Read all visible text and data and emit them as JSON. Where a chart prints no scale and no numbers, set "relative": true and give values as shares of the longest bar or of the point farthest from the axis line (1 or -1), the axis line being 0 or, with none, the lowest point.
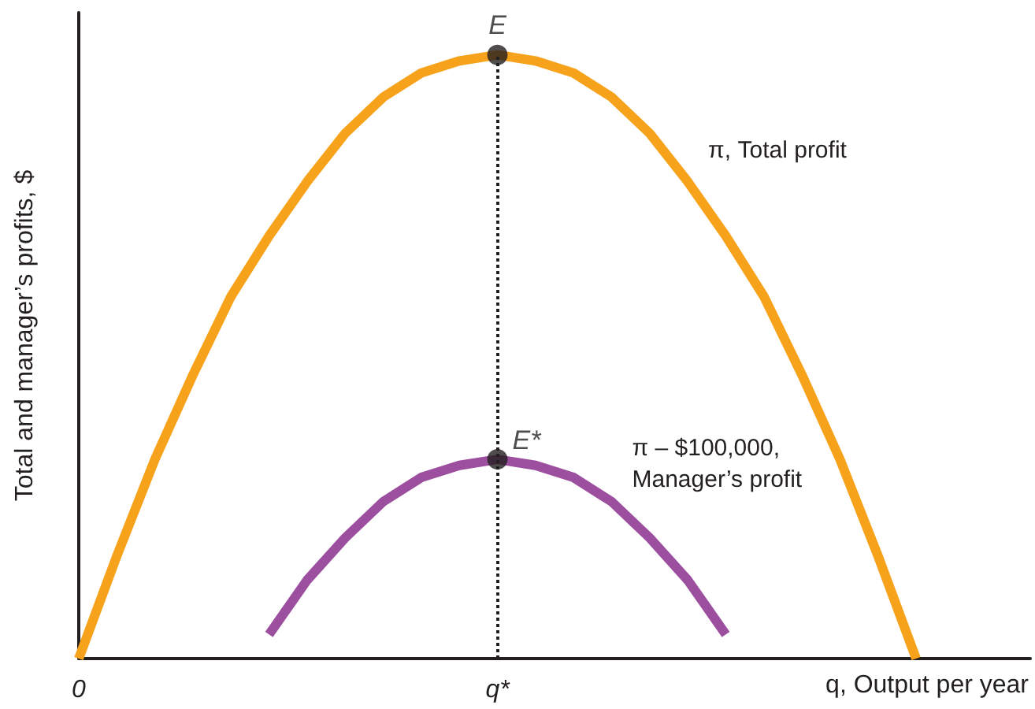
{
  "chart_data": {
    "type": "line",
    "relative": true,
    "xlabel": "q, Output per year",
    "ylabel": "Total and manager’s profits, $",
    "categories": [
      "0",
      null,
      null,
      null,
      null,
      null,
      null,
      null,
      null,
      null,
      null,
      "q*",
      null,
      null,
      null,
      null,
      null,
      null,
      null,
      null,
      null,
      null,
      null,
      null,
      null,
      null
    ],
    "series": [
      {
        "name": "π, Total profit",
        "color": "#f7a21b",
        "values": [
          0,
          0.17,
          0.33,
          0.47,
          0.6,
          0.7,
          0.79,
          0.87,
          0.93,
          0.97,
          0.99,
          1,
          0.99,
          0.97,
          0.93,
          0.87,
          0.79,
          0.7,
          0.6,
          0.47,
          0.33,
          0.17,
          0,
          null,
          null,
          null
        ]
      },
      {
        "name": "π – $100,000,\nManager’s profit",
        "color": "#9b4f9e",
        "values": [
          null,
          null,
          null,
          null,
          null,
          0.04,
          0.13,
          0.2,
          0.26,
          0.3,
          0.32,
          0.33,
          0.32,
          0.3,
          0.26,
          0.2,
          0.13,
          0.04,
          null,
          null,
          null,
          null,
          null,
          null,
          null,
          null
        ]
      }
    ],
    "annotations": [
      {
        "text": "E",
        "x": "q*",
        "y": 1
      },
      {
        "text": "E*",
        "x": "q*",
        "y": 0.33
      }
    ],
    "ref_lines": [
      {
        "axis": "x",
        "value": "q*",
        "line_style": "dotted",
        "color": "#231f20"
      }
    ],
    "tick_labels": "x",
    "grid": false,
    "line_style": "solid"
  }
}
